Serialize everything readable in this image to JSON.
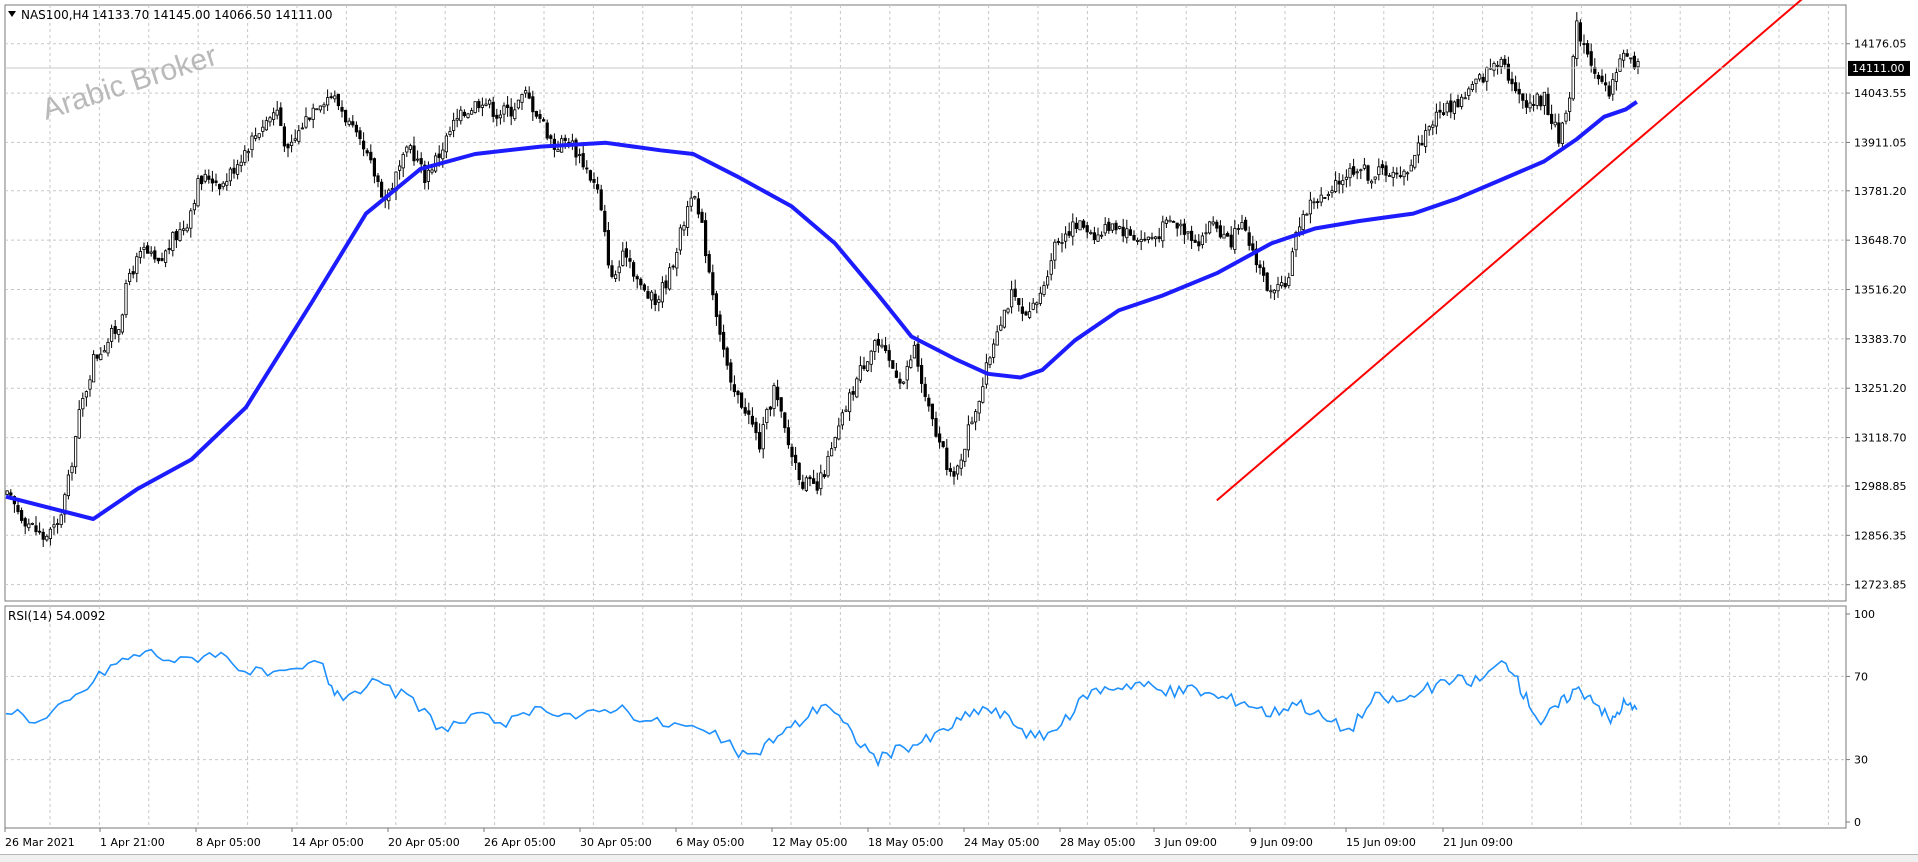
{
  "chart_data": [
    {
      "type": "candlestick",
      "symbol_label": "NAS100,H4",
      "ohlc_label": "14133.70 14145.00 14066.50 14111.00",
      "watermark": "Arabic Broker",
      "price_ticks": [
        "14176.05",
        "14043.55",
        "13911.05",
        "13781.20",
        "13648.70",
        "13516.20",
        "13383.70",
        "13251.20",
        "13118.70",
        "12988.85",
        "12856.35",
        "12723.85"
      ],
      "ylim": [
        12680,
        14280
      ],
      "current_price": "14111.00",
      "time_ticks": [
        "26 Mar 2021",
        "1 Apr 21:00",
        "8 Apr 05:00",
        "14 Apr 05:00",
        "20 Apr 05:00",
        "26 Apr 05:00",
        "30 Apr 05:00",
        "6 May 05:00",
        "12 May 05:00",
        "18 May 05:00",
        "24 May 05:00",
        "28 May 05:00",
        "3 Jun 09:00",
        "9 Jun 09:00",
        "15 Jun 09:00",
        "21 Jun 09:00"
      ],
      "close_path": [
        [
          0,
          12960
        ],
        [
          5,
          12900
        ],
        [
          10,
          12850
        ],
        [
          14,
          12880
        ],
        [
          17,
          13000
        ],
        [
          20,
          13180
        ],
        [
          24,
          13330
        ],
        [
          28,
          13380
        ],
        [
          31,
          13420
        ],
        [
          34,
          13560
        ],
        [
          38,
          13620
        ],
        [
          42,
          13580
        ],
        [
          46,
          13650
        ],
        [
          50,
          13700
        ],
        [
          53,
          13800
        ],
        [
          56,
          13820
        ],
        [
          60,
          13800
        ],
        [
          64,
          13860
        ],
        [
          68,
          13920
        ],
        [
          71,
          13960
        ],
        [
          75,
          14000
        ],
        [
          78,
          13880
        ],
        [
          82,
          13960
        ],
        [
          86,
          14020
        ],
        [
          90,
          14040
        ],
        [
          93,
          14000
        ],
        [
          97,
          13920
        ],
        [
          101,
          13850
        ],
        [
          105,
          13760
        ],
        [
          108,
          13820
        ],
        [
          112,
          13900
        ],
        [
          116,
          13820
        ],
        [
          120,
          13880
        ],
        [
          124,
          13960
        ],
        [
          128,
          14000
        ],
        [
          132,
          14030
        ],
        [
          136,
          13990
        ],
        [
          140,
          14000
        ],
        [
          144,
          14040
        ],
        [
          148,
          13980
        ],
        [
          152,
          13900
        ],
        [
          156,
          13920
        ],
        [
          160,
          13860
        ],
        [
          164,
          13780
        ],
        [
          168,
          13540
        ],
        [
          172,
          13620
        ],
        [
          176,
          13520
        ],
        [
          180,
          13480
        ],
        [
          184,
          13560
        ],
        [
          188,
          13700
        ],
        [
          190,
          13780
        ],
        [
          193,
          13680
        ],
        [
          197,
          13460
        ],
        [
          201,
          13250
        ],
        [
          205,
          13200
        ],
        [
          209,
          13100
        ],
        [
          213,
          13250
        ],
        [
          217,
          13100
        ],
        [
          221,
          13000
        ],
        [
          225,
          12980
        ],
        [
          229,
          13080
        ],
        [
          233,
          13200
        ],
        [
          237,
          13300
        ],
        [
          241,
          13380
        ],
        [
          245,
          13320
        ],
        [
          249,
          13270
        ],
        [
          252,
          13360
        ],
        [
          255,
          13220
        ],
        [
          259,
          13100
        ],
        [
          263,
          13000
        ],
        [
          267,
          13140
        ],
        [
          271,
          13260
        ],
        [
          275,
          13420
        ],
        [
          279,
          13500
        ],
        [
          283,
          13430
        ],
        [
          287,
          13500
        ],
        [
          291,
          13640
        ],
        [
          295,
          13680
        ],
        [
          299,
          13690
        ],
        [
          303,
          13660
        ],
        [
          307,
          13700
        ],
        [
          311,
          13670
        ],
        [
          315,
          13650
        ],
        [
          319,
          13660
        ],
        [
          323,
          13700
        ],
        [
          327,
          13680
        ],
        [
          331,
          13650
        ],
        [
          335,
          13700
        ],
        [
          339,
          13640
        ],
        [
          343,
          13680
        ],
        [
          347,
          13600
        ],
        [
          351,
          13500
        ],
        [
          355,
          13520
        ],
        [
          359,
          13700
        ],
        [
          363,
          13760
        ],
        [
          367,
          13760
        ],
        [
          371,
          13820
        ],
        [
          375,
          13850
        ],
        [
          379,
          13820
        ],
        [
          383,
          13840
        ],
        [
          387,
          13810
        ],
        [
          391,
          13880
        ],
        [
          395,
          13960
        ],
        [
          399,
          14000
        ],
        [
          403,
          14020
        ],
        [
          407,
          14060
        ],
        [
          411,
          14100
        ],
        [
          415,
          14150
        ],
        [
          419,
          14040
        ],
        [
          423,
          14020
        ],
        [
          427,
          14030
        ],
        [
          431,
          13920
        ],
        [
          434,
          14050
        ],
        [
          436,
          14220
        ],
        [
          439,
          14160
        ],
        [
          442,
          14080
        ],
        [
          445,
          14030
        ],
        [
          448,
          14150
        ],
        [
          451,
          14130
        ],
        [
          453,
          14111
        ]
      ],
      "ma_path": [
        [
          0,
          12960
        ],
        [
          16,
          12900
        ],
        [
          24,
          12980
        ],
        [
          34,
          13060
        ],
        [
          44,
          13200
        ],
        [
          56,
          13480
        ],
        [
          66,
          13720
        ],
        [
          76,
          13840
        ],
        [
          86,
          13880
        ],
        [
          98,
          13900
        ],
        [
          110,
          13910
        ],
        [
          120,
          13890
        ],
        [
          126,
          13880
        ],
        [
          134,
          13820
        ],
        [
          144,
          13740
        ],
        [
          152,
          13640
        ],
        [
          160,
          13500
        ],
        [
          166,
          13390
        ],
        [
          174,
          13330
        ],
        [
          180,
          13290
        ],
        [
          186,
          13280
        ],
        [
          190,
          13300
        ],
        [
          196,
          13380
        ],
        [
          204,
          13460
        ],
        [
          212,
          13500
        ],
        [
          222,
          13560
        ],
        [
          232,
          13640
        ],
        [
          240,
          13680
        ],
        [
          248,
          13700
        ],
        [
          258,
          13720
        ],
        [
          266,
          13760
        ],
        [
          274,
          13810
        ],
        [
          282,
          13860
        ],
        [
          288,
          13920
        ],
        [
          293,
          13980
        ],
        [
          297,
          14000
        ],
        [
          299,
          14020
        ]
      ],
      "trendline": [
        [
          222,
          12950
        ],
        [
          340,
          14430
        ]
      ],
      "rsi": {
        "label": "RSI(14) 54.0092",
        "ticks": [
          "100",
          "70",
          "30",
          "0"
        ],
        "ylim": [
          0,
          100
        ],
        "values": [
          [
            0,
            55
          ],
          [
            8,
            48
          ],
          [
            16,
            60
          ],
          [
            24,
            75
          ],
          [
            32,
            82
          ],
          [
            40,
            77
          ],
          [
            48,
            82
          ],
          [
            56,
            72
          ],
          [
            64,
            70
          ],
          [
            72,
            77
          ],
          [
            76,
            60
          ],
          [
            84,
            66
          ],
          [
            92,
            60
          ],
          [
            100,
            45
          ],
          [
            108,
            50
          ],
          [
            116,
            48
          ],
          [
            124,
            55
          ],
          [
            132,
            50
          ],
          [
            140,
            56
          ],
          [
            148,
            48
          ],
          [
            156,
            46
          ],
          [
            164,
            40
          ],
          [
            170,
            30
          ],
          [
            176,
            40
          ],
          [
            182,
            48
          ],
          [
            188,
            58
          ],
          [
            194,
            42
          ],
          [
            200,
            30
          ],
          [
            206,
            36
          ],
          [
            212,
            40
          ],
          [
            218,
            48
          ],
          [
            224,
            55
          ],
          [
            230,
            50
          ],
          [
            236,
            40
          ],
          [
            242,
            46
          ],
          [
            248,
            62
          ],
          [
            254,
            65
          ],
          [
            260,
            67
          ],
          [
            266,
            62
          ],
          [
            272,
            64
          ],
          [
            278,
            60
          ],
          [
            284,
            58
          ],
          [
            290,
            52
          ],
          [
            296,
            58
          ],
          [
            302,
            50
          ],
          [
            308,
            44
          ],
          [
            314,
            60
          ],
          [
            320,
            58
          ],
          [
            326,
            64
          ],
          [
            332,
            68
          ],
          [
            338,
            68
          ],
          [
            344,
            78
          ],
          [
            348,
            62
          ],
          [
            352,
            48
          ],
          [
            356,
            56
          ],
          [
            360,
            64
          ],
          [
            364,
            60
          ],
          [
            368,
            48
          ],
          [
            371,
            57
          ],
          [
            374,
            54
          ]
        ]
      }
    }
  ]
}
